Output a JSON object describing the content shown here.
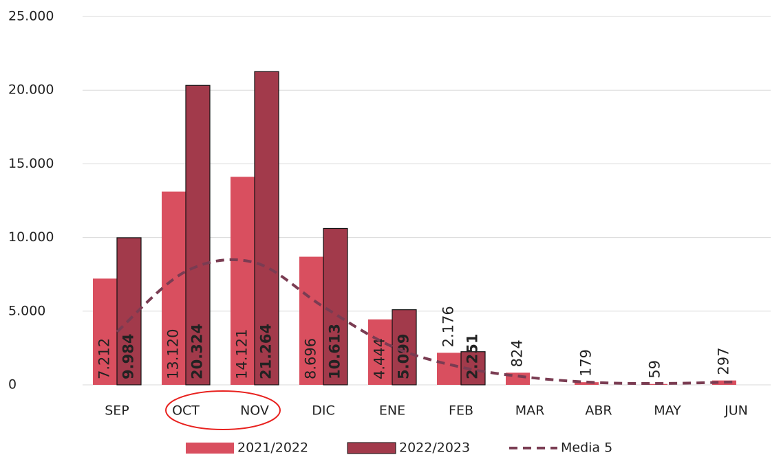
{
  "chart_data": {
    "type": "bar",
    "categories": [
      "SEP",
      "OCT",
      "NOV",
      "DIC",
      "ENE",
      "FEB",
      "MAR",
      "ABR",
      "MAY",
      "JUN"
    ],
    "series": [
      {
        "name": "2021/2022",
        "color": "#d94f5f",
        "values": [
          7212,
          13120,
          14121,
          8696,
          4444,
          2176,
          824,
          179,
          59,
          297
        ],
        "value_labels": [
          "7.212",
          "13.120",
          "14.121",
          "8.696",
          "4.444",
          "2.176",
          "824",
          "179",
          "59",
          "297"
        ]
      },
      {
        "name": "2022/2023",
        "color": "#a23a4b",
        "values": [
          9984,
          20324,
          21264,
          10613,
          5099,
          2251,
          null,
          null,
          null,
          null
        ],
        "value_labels": [
          "9.984",
          "20.324",
          "21.264",
          "10.613",
          "5.099",
          "2.251",
          null,
          null,
          null,
          null
        ]
      },
      {
        "name": "Media 5",
        "color": "#7a3c52",
        "type": "line",
        "values": [
          3600,
          7700,
          8300,
          5300,
          2600,
          1200,
          500,
          150,
          100,
          200
        ]
      }
    ],
    "ylim": [
      0,
      25000
    ],
    "yticks": [
      0,
      {
        "value": 5000,
        "label": "5.000"
      },
      {
        "value": 10000,
        "label": "10.000"
      },
      {
        "value": 15000,
        "label": "15.000"
      },
      {
        "value": 20000,
        "label": "20.000"
      },
      {
        "value": 25000,
        "label": "25.000"
      }
    ],
    "grid": true,
    "legend": "bottom"
  }
}
